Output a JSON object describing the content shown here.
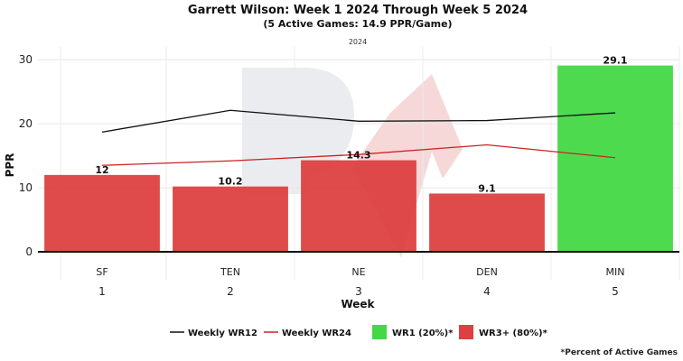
{
  "chart_data": {
    "type": "bar",
    "title": "Garrett Wilson: Week 1 2024 Through Week 5 2024",
    "subtitle": "(5 Active Games: 14.9 PPR/Game)",
    "season_label": "2024",
    "xlabel": "Week",
    "ylabel": "PPR",
    "ylim": [
      0,
      32
    ],
    "yticks": [
      0,
      10,
      20,
      30
    ],
    "grid": true,
    "legend_position": "bottom",
    "categories": [
      "1",
      "2",
      "3",
      "4",
      "5"
    ],
    "opponents": [
      "SF",
      "TEN",
      "NE",
      "DEN",
      "MIN"
    ],
    "bars": {
      "values": [
        12,
        10.2,
        14.3,
        9.1,
        29.1
      ],
      "labels": [
        "12",
        "10.2",
        "14.3",
        "9.1",
        "29.1"
      ],
      "tiers": [
        "WR3+",
        "WR3+",
        "WR3+",
        "WR3+",
        "WR1"
      ]
    },
    "series": [
      {
        "name": "Weekly WR12",
        "color": "#111111",
        "values": [
          18.7,
          22.1,
          20.4,
          20.5,
          21.7
        ]
      },
      {
        "name": "Weekly WR24",
        "color": "#cc2222",
        "values": [
          13.5,
          14.2,
          15.2,
          16.7,
          14.7
        ]
      }
    ],
    "bar_legend": [
      {
        "key": "WR1",
        "name": "WR1 (20%)*",
        "color": "#44d844"
      },
      {
        "key": "WR3+",
        "name": "WR3+ (80%)*",
        "color": "#dd4040"
      }
    ],
    "footnote": "*Percent of Active Games"
  }
}
